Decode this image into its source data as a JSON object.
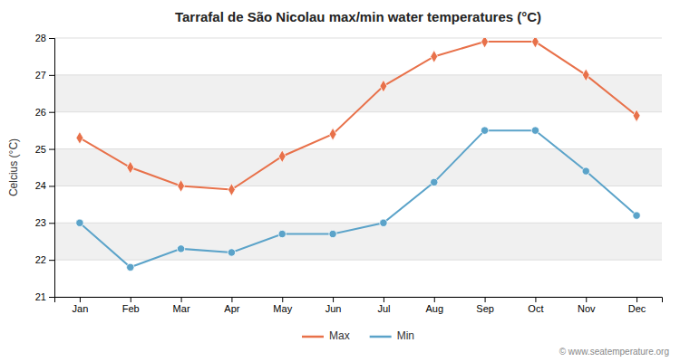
{
  "chart_data": {
    "type": "line",
    "title": "Tarrafal de São Nicolau max/min water temperatures (°C)",
    "ylabel": "Celcius (°C)",
    "categories": [
      "Jan",
      "Feb",
      "Mar",
      "Apr",
      "May",
      "Jun",
      "Jul",
      "Aug",
      "Sep",
      "Oct",
      "Nov",
      "Dec"
    ],
    "series": [
      {
        "name": "Max",
        "color": "#e8714a",
        "marker": "diamond",
        "line_style": "solid",
        "values": [
          25.3,
          24.5,
          24.0,
          23.9,
          24.8,
          25.4,
          26.7,
          27.5,
          27.9,
          27.9,
          27.0,
          25.9
        ]
      },
      {
        "name": "Min",
        "color": "#5ba3c9",
        "marker": "circle",
        "line_style": "solid",
        "values": [
          23.0,
          21.8,
          22.3,
          22.2,
          22.7,
          22.7,
          23.0,
          24.1,
          25.5,
          25.5,
          24.4,
          23.2
        ]
      }
    ],
    "ylim": [
      21,
      28
    ],
    "yticks": [
      21,
      22,
      23,
      24,
      25,
      26,
      27,
      28
    ],
    "grid": true,
    "legend": "bottom",
    "annotations": [
      "© www.seatemperature.org"
    ]
  }
}
